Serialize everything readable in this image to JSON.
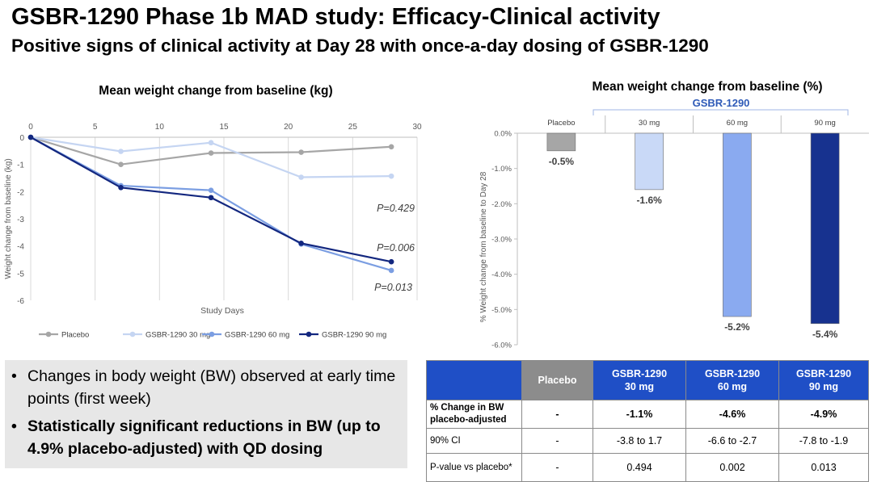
{
  "page": {
    "title": "GSBR-1290 Phase 1b MAD study: Efficacy-Clinical activity",
    "subtitle": "Positive signs of clinical activity at Day 28 with once-a-day dosing of GSBR-1290"
  },
  "chart_data": [
    {
      "type": "line",
      "title": "Mean weight change from baseline (kg)",
      "xlabel": "Study Days",
      "ylabel": "Weight change from baseline (kg)",
      "xlim": [
        0,
        30
      ],
      "ylim": [
        -6,
        0
      ],
      "xticks": [
        0,
        5,
        10,
        15,
        20,
        25,
        30
      ],
      "yticks": [
        0,
        -1,
        -2,
        -3,
        -4,
        -5,
        -6
      ],
      "grid": "vertical",
      "legend": "bottom",
      "x": [
        0,
        7,
        14,
        21,
        28
      ],
      "series": [
        {
          "name": "Placebo",
          "values": [
            0,
            -1.0,
            -0.58,
            -0.55,
            -0.35
          ],
          "color": "#a6a6a6"
        },
        {
          "name": "GSBR-1290 30 mg",
          "values": [
            0,
            -0.52,
            -0.2,
            -1.47,
            -1.43
          ],
          "color": "#c5d5f2"
        },
        {
          "name": "GSBR-1290 60 mg",
          "values": [
            0,
            -1.78,
            -1.95,
            -3.93,
            -4.9
          ],
          "color": "#7b9ee2"
        },
        {
          "name": "GSBR-1290 90 mg",
          "values": [
            0,
            -1.85,
            -2.22,
            -3.9,
            -4.58
          ],
          "color": "#13277f"
        }
      ],
      "annotations": [
        "P=0.429",
        "P=0.006",
        "P=0.013"
      ]
    },
    {
      "type": "bar",
      "title": "Mean weight change from baseline (%)",
      "group_label": "GSBR-1290",
      "ylabel": "% Weight change from baseline to Day 28",
      "ylim": [
        -6,
        0
      ],
      "yticks": [
        "0.0%",
        "-1.0%",
        "-2.0%",
        "-3.0%",
        "-4.0%",
        "-5.0%",
        "-6.0%"
      ],
      "categories": [
        "Placebo",
        "30 mg",
        "60 mg",
        "90 mg"
      ],
      "values": [
        -0.5,
        -1.6,
        -5.2,
        -5.4
      ],
      "data_labels": [
        "-0.5%",
        "-1.6%",
        "-5.2%",
        "-5.4%"
      ],
      "colors": [
        "#a6a6a6",
        "#c9d9f7",
        "#8aaaf0",
        "#17328f"
      ]
    }
  ],
  "bullets": [
    "Changes in body weight (BW) observed at early time points (first week)",
    "Statistically significant reductions in BW (up to 4.9% placebo-adjusted) with QD dosing"
  ],
  "table": {
    "headers": [
      "",
      "Placebo",
      "GSBR-1290\n30 mg",
      "GSBR-1290\n60 mg",
      "GSBR-1290\n90 mg"
    ],
    "rows": [
      [
        "% Change in BW placebo-adjusted",
        "-",
        "-1.1%",
        "-4.6%",
        "-4.9%"
      ],
      [
        "90% CI",
        "-",
        "-3.8 to 1.7",
        "-6.6 to -2.7",
        "-7.8 to -1.9"
      ],
      [
        "P-value vs placebo*",
        "-",
        "0.494",
        "0.002",
        "0.013"
      ]
    ]
  }
}
